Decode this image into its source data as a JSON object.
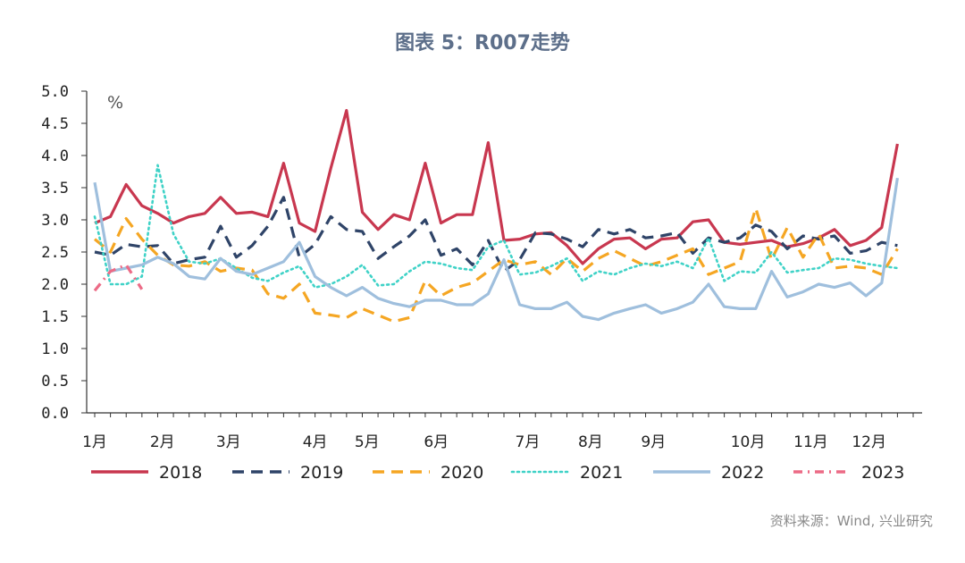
{
  "chart_data": {
    "type": "line",
    "title": "图表 5：R007走势",
    "unit_label": "%",
    "xlabel": "",
    "ylabel": "",
    "ylim": [
      0,
      5.0
    ],
    "y_ticks": [
      "0.0",
      "0.5",
      "1.0",
      "1.5",
      "2.0",
      "2.5",
      "3.0",
      "3.5",
      "4.0",
      "4.5",
      "5.0"
    ],
    "x_index_range": [
      0,
      52
    ],
    "month_ticks": [
      {
        "label": "1月",
        "x": 0
      },
      {
        "label": "2月",
        "x": 4.3
      },
      {
        "label": "3月",
        "x": 8.5
      },
      {
        "label": "4月",
        "x": 14
      },
      {
        "label": "5月",
        "x": 17.3
      },
      {
        "label": "6月",
        "x": 21.7
      },
      {
        "label": "7月",
        "x": 27.5
      },
      {
        "label": "8月",
        "x": 31.5
      },
      {
        "label": "9月",
        "x": 35.5
      },
      {
        "label": "10月",
        "x": 41.5
      },
      {
        "label": "11月",
        "x": 45.5
      },
      {
        "label": "12月",
        "x": 49.2
      }
    ],
    "legend_position": "bottom",
    "grid": false,
    "series": [
      {
        "name": "2018",
        "color": "#c8374f",
        "style": "solid",
        "values": [
          2.95,
          3.05,
          3.55,
          3.22,
          3.1,
          2.95,
          3.05,
          3.1,
          3.35,
          3.1,
          3.12,
          3.05,
          3.88,
          2.95,
          2.82,
          3.8,
          4.7,
          3.12,
          2.85,
          3.08,
          3.0,
          3.88,
          2.95,
          3.08,
          3.08,
          4.2,
          2.68,
          2.7,
          2.78,
          2.8,
          2.6,
          2.32,
          2.55,
          2.7,
          2.72,
          2.55,
          2.7,
          2.72,
          2.97,
          3.0,
          2.65,
          2.62,
          2.65,
          2.68,
          2.58,
          2.63,
          2.72,
          2.85,
          2.6,
          2.68,
          2.88,
          4.18
        ]
      },
      {
        "name": "2019",
        "color": "#2f4468",
        "style": "dashed",
        "values": [
          2.5,
          2.45,
          2.62,
          2.58,
          2.6,
          2.32,
          2.38,
          2.42,
          2.9,
          2.42,
          2.6,
          2.9,
          3.35,
          2.42,
          2.62,
          3.05,
          2.85,
          2.82,
          2.4,
          2.58,
          2.75,
          3.0,
          2.45,
          2.55,
          2.3,
          2.68,
          2.2,
          2.38,
          2.8,
          2.78,
          2.7,
          2.58,
          2.85,
          2.78,
          2.85,
          2.72,
          2.75,
          2.8,
          2.48,
          2.72,
          2.65,
          2.72,
          2.92,
          2.82,
          2.55,
          2.75,
          2.7,
          2.75,
          2.48,
          2.52,
          2.65,
          2.6
        ]
      },
      {
        "name": "2020",
        "color": "#f5a623",
        "style": "dashed",
        "values": [
          2.7,
          2.5,
          3.02,
          2.7,
          2.45,
          2.3,
          2.28,
          2.35,
          2.2,
          2.25,
          2.22,
          1.85,
          1.78,
          2.0,
          1.55,
          1.52,
          1.48,
          1.62,
          1.52,
          1.42,
          1.48,
          2.05,
          1.82,
          1.95,
          2.02,
          2.2,
          2.38,
          2.3,
          2.35,
          2.15,
          2.4,
          2.2,
          2.4,
          2.52,
          2.4,
          2.28,
          2.35,
          2.45,
          2.55,
          2.15,
          2.25,
          2.35,
          3.18,
          2.38,
          2.88,
          2.42,
          2.78,
          2.25,
          2.28,
          2.25,
          2.15,
          2.55
        ]
      },
      {
        "name": "2021",
        "color": "#3fd2c7",
        "style": "dotted",
        "values": [
          3.05,
          2.0,
          2.0,
          2.12,
          3.85,
          2.78,
          2.35,
          2.32,
          2.4,
          2.25,
          2.1,
          2.05,
          2.18,
          2.28,
          1.95,
          2.0,
          2.12,
          2.3,
          1.98,
          2.0,
          2.2,
          2.35,
          2.32,
          2.25,
          2.22,
          2.58,
          2.68,
          2.15,
          2.18,
          2.28,
          2.4,
          2.05,
          2.2,
          2.15,
          2.25,
          2.32,
          2.28,
          2.35,
          2.25,
          2.72,
          2.05,
          2.2,
          2.18,
          2.5,
          2.18,
          2.22,
          2.25,
          2.4,
          2.38,
          2.32,
          2.28,
          2.25
        ]
      },
      {
        "name": "2022",
        "color": "#9fbfdd",
        "style": "solid",
        "values": [
          3.58,
          2.2,
          2.25,
          2.3,
          2.42,
          2.32,
          2.12,
          2.08,
          2.4,
          2.2,
          2.15,
          2.25,
          2.35,
          2.65,
          2.12,
          1.95,
          1.82,
          1.95,
          1.78,
          1.7,
          1.65,
          1.75,
          1.75,
          1.68,
          1.68,
          1.85,
          2.38,
          1.68,
          1.62,
          1.62,
          1.72,
          1.5,
          1.45,
          1.55,
          1.62,
          1.68,
          1.55,
          1.62,
          1.72,
          2.0,
          1.65,
          1.62,
          1.62,
          2.2,
          1.8,
          1.88,
          2.0,
          1.95,
          2.02,
          1.82,
          2.02,
          3.65
        ]
      },
      {
        "name": "2023",
        "color": "#ec6b86",
        "style": "dashdot",
        "values": [
          1.9,
          2.2,
          2.3,
          1.92
        ]
      }
    ]
  },
  "source_note": "资料来源：Wind, 兴业研究"
}
